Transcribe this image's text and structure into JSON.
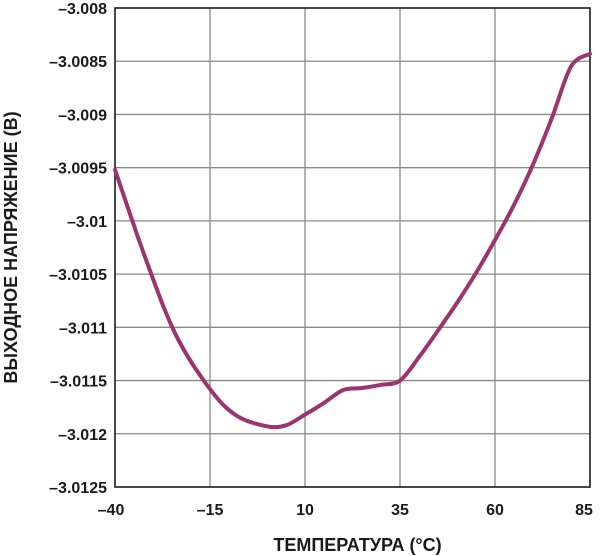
{
  "chart_data": {
    "type": "line",
    "title": "",
    "xlabel": "ТЕМПЕРАТУРА (°C)",
    "ylabel": "ВЫХОДНОЕ НАПРЯЖЕНИЕ (В)",
    "xlim": [
      -40,
      85
    ],
    "ylim": [
      -3.0125,
      -3.008
    ],
    "x_ticks": [
      -40,
      -15,
      10,
      35,
      60,
      85
    ],
    "x_tick_labels": [
      "–40",
      "–15",
      "10",
      "35",
      "60",
      "85"
    ],
    "y_ticks": [
      -3.008,
      -3.0085,
      -3.009,
      -3.0095,
      -3.01,
      -3.0105,
      -3.011,
      -3.0115,
      -3.012,
      -3.0125
    ],
    "y_tick_labels": [
      "–3.008",
      "–3.0085",
      "–3.009",
      "–3.0095",
      "–3.01",
      "–3.0105",
      "–3.011",
      "–3.0115",
      "–3.012",
      "–3.0125"
    ],
    "grid": true,
    "line_color": "#9b3470",
    "series": [
      {
        "x": [
          -40,
          -32,
          -24,
          -15,
          -8,
          0,
          5,
          10,
          15,
          20,
          25,
          30,
          35,
          40,
          45,
          50,
          55,
          60,
          65,
          70,
          75,
          80,
          85
        ],
        "values": [
          -3.00952,
          -3.01035,
          -3.01107,
          -3.01158,
          -3.01183,
          -3.01193,
          -3.01192,
          -3.01182,
          -3.01171,
          -3.01159,
          -3.01157,
          -3.01154,
          -3.0115,
          -3.01128,
          -3.01103,
          -3.01077,
          -3.01049,
          -3.01018,
          -3.00985,
          -3.00947,
          -3.00903,
          -3.00855,
          -3.00843
        ]
      }
    ]
  }
}
